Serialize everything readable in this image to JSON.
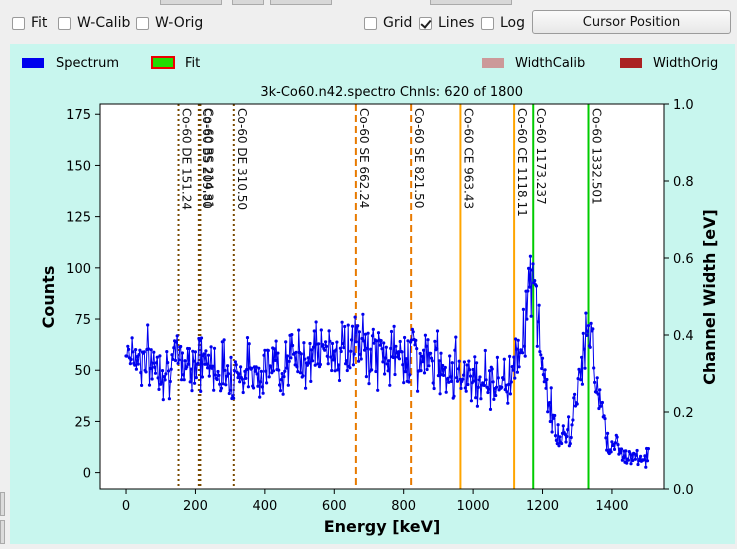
{
  "toolbar": {
    "fit_label": "Fit",
    "wcalib_label": "W-Calib",
    "worig_label": "W-Orig",
    "grid_label": "Grid",
    "lines_label": "Lines",
    "log_label": "Log",
    "cursor_button_label": "Cursor Position",
    "fit_checked": false,
    "wcalib_checked": false,
    "worig_checked": false,
    "grid_checked": false,
    "lines_checked": true,
    "log_checked": false
  },
  "legend": {
    "spectrum": "Spectrum",
    "fit": "Fit",
    "widthcalib": "WidthCalib",
    "widthorig": "WidthOrig",
    "colors": {
      "spectrum": "#0000ee",
      "fit_fill": "#22dd00",
      "fit_border": "#ee0000",
      "widthcalib": "#cc9999",
      "widthorig": "#aa2222"
    }
  },
  "chart_data": {
    "type": "line",
    "info_text": "3k-Co60.n42.spectro  Chnls: 620 of 1800",
    "xlabel": "Energy [keV]",
    "ylabel": "Counts",
    "y2label": "Channel Width [eV]",
    "xlim": [
      -75,
      1550
    ],
    "ylim": [
      -8,
      180
    ],
    "y2lim": [
      0.0,
      1.0
    ],
    "xticks": [
      "0",
      "200",
      "400",
      "600",
      "800",
      "1000",
      "1200",
      "1400"
    ],
    "yticks": [
      "0",
      "25",
      "50",
      "75",
      "100",
      "125",
      "150",
      "175"
    ],
    "y2ticks": [
      "0.0",
      "0.2",
      "0.4",
      "0.6",
      "0.8",
      "1.0"
    ],
    "grid": false,
    "series_color": "#0000ee",
    "spectrum_anchors": [
      [
        0,
        62
      ],
      [
        10,
        60
      ],
      [
        40,
        56
      ],
      [
        80,
        53
      ],
      [
        120,
        52
      ],
      [
        160,
        54
      ],
      [
        200,
        56
      ],
      [
        240,
        53
      ],
      [
        280,
        50
      ],
      [
        320,
        49
      ],
      [
        360,
        50
      ],
      [
        400,
        51
      ],
      [
        440,
        53
      ],
      [
        480,
        55
      ],
      [
        520,
        57
      ],
      [
        560,
        59
      ],
      [
        600,
        60
      ],
      [
        640,
        59
      ],
      [
        662,
        66
      ],
      [
        680,
        60
      ],
      [
        720,
        58
      ],
      [
        760,
        57
      ],
      [
        800,
        56
      ],
      [
        821,
        63
      ],
      [
        840,
        56
      ],
      [
        880,
        54
      ],
      [
        920,
        52
      ],
      [
        960,
        50
      ],
      [
        1000,
        47
      ],
      [
        1040,
        45
      ],
      [
        1080,
        44
      ],
      [
        1100,
        45
      ],
      [
        1110,
        49
      ],
      [
        1120,
        55
      ],
      [
        1135,
        62
      ],
      [
        1150,
        75
      ],
      [
        1160,
        90
      ],
      [
        1170,
        92
      ],
      [
        1175,
        88
      ],
      [
        1185,
        80
      ],
      [
        1195,
        60
      ],
      [
        1205,
        45
      ],
      [
        1215,
        38
      ],
      [
        1225,
        32
      ],
      [
        1235,
        22
      ],
      [
        1245,
        18
      ],
      [
        1255,
        15
      ],
      [
        1265,
        16
      ],
      [
        1280,
        20
      ],
      [
        1295,
        32
      ],
      [
        1310,
        52
      ],
      [
        1320,
        65
      ],
      [
        1332,
        68
      ],
      [
        1340,
        62
      ],
      [
        1350,
        50
      ],
      [
        1360,
        43
      ],
      [
        1370,
        35
      ],
      [
        1375,
        27
      ],
      [
        1385,
        18
      ],
      [
        1395,
        15
      ],
      [
        1420,
        11
      ],
      [
        1450,
        9
      ],
      [
        1480,
        8
      ],
      [
        1505,
        7
      ]
    ],
    "energy_lines": [
      {
        "x": 151.24,
        "label": "Co-60 DE  151.24",
        "color": "#7a4a00",
        "style": "dotted"
      },
      {
        "x": 209.8,
        "label": "Co-60 BS  209.80",
        "color": "#7a4a00",
        "style": "dotted"
      },
      {
        "x": 214.31,
        "label": "Co-60 BS  214.31",
        "color": "#7a4a00",
        "style": "dotted"
      },
      {
        "x": 310.5,
        "label": "Co-60 DE  310.50",
        "color": "#7a4a00",
        "style": "dotted"
      },
      {
        "x": 662.24,
        "label": "Co-60 SE  662.24",
        "color": "#e87a00",
        "style": "dashed"
      },
      {
        "x": 821.5,
        "label": "Co-60 SE  821.50",
        "color": "#e87a00",
        "style": "dashed"
      },
      {
        "x": 963.43,
        "label": "Co-60 CE  963.43",
        "color": "#ffa500",
        "style": "solid"
      },
      {
        "x": 1118.11,
        "label": "Co-60 CE  1118.11",
        "color": "#ffa500",
        "style": "solid"
      },
      {
        "x": 1173.237,
        "label": "Co-60  1173.237",
        "color": "#00cc00",
        "style": "solid"
      },
      {
        "x": 1332.501,
        "label": "Co-60  1332.501",
        "color": "#00cc00",
        "style": "solid"
      }
    ]
  }
}
